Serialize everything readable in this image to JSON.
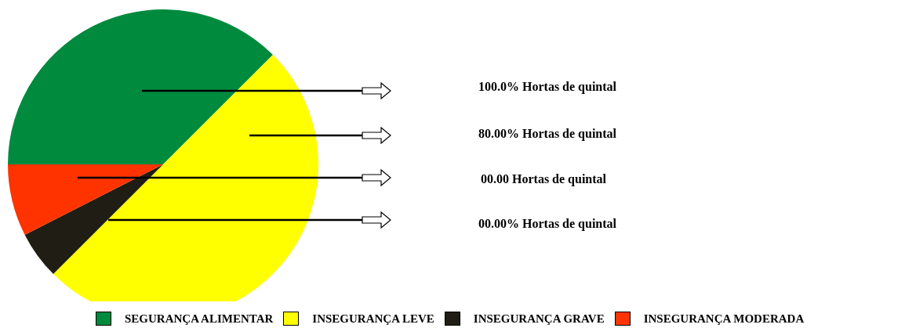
{
  "chart_data": {
    "type": "pie",
    "categories": [
      "SEGURANÇA ALIMENTAR",
      "INSEGURANÇA LEVE",
      "INSEGURANÇA GRAVE",
      "INSEGURANÇA MODERADA"
    ],
    "values": [
      37.5,
      50,
      5,
      7.5
    ],
    "colors": [
      "#008a3e",
      "#ffff00",
      "#201e14",
      "#ff3300"
    ],
    "legend": "bottom",
    "annotations": [
      "100.0% Hortas de quintal",
      "80.00% Hortas de quintal",
      "00.00 Hortas de quintal",
      "00.00% Hortas de quintal"
    ]
  }
}
